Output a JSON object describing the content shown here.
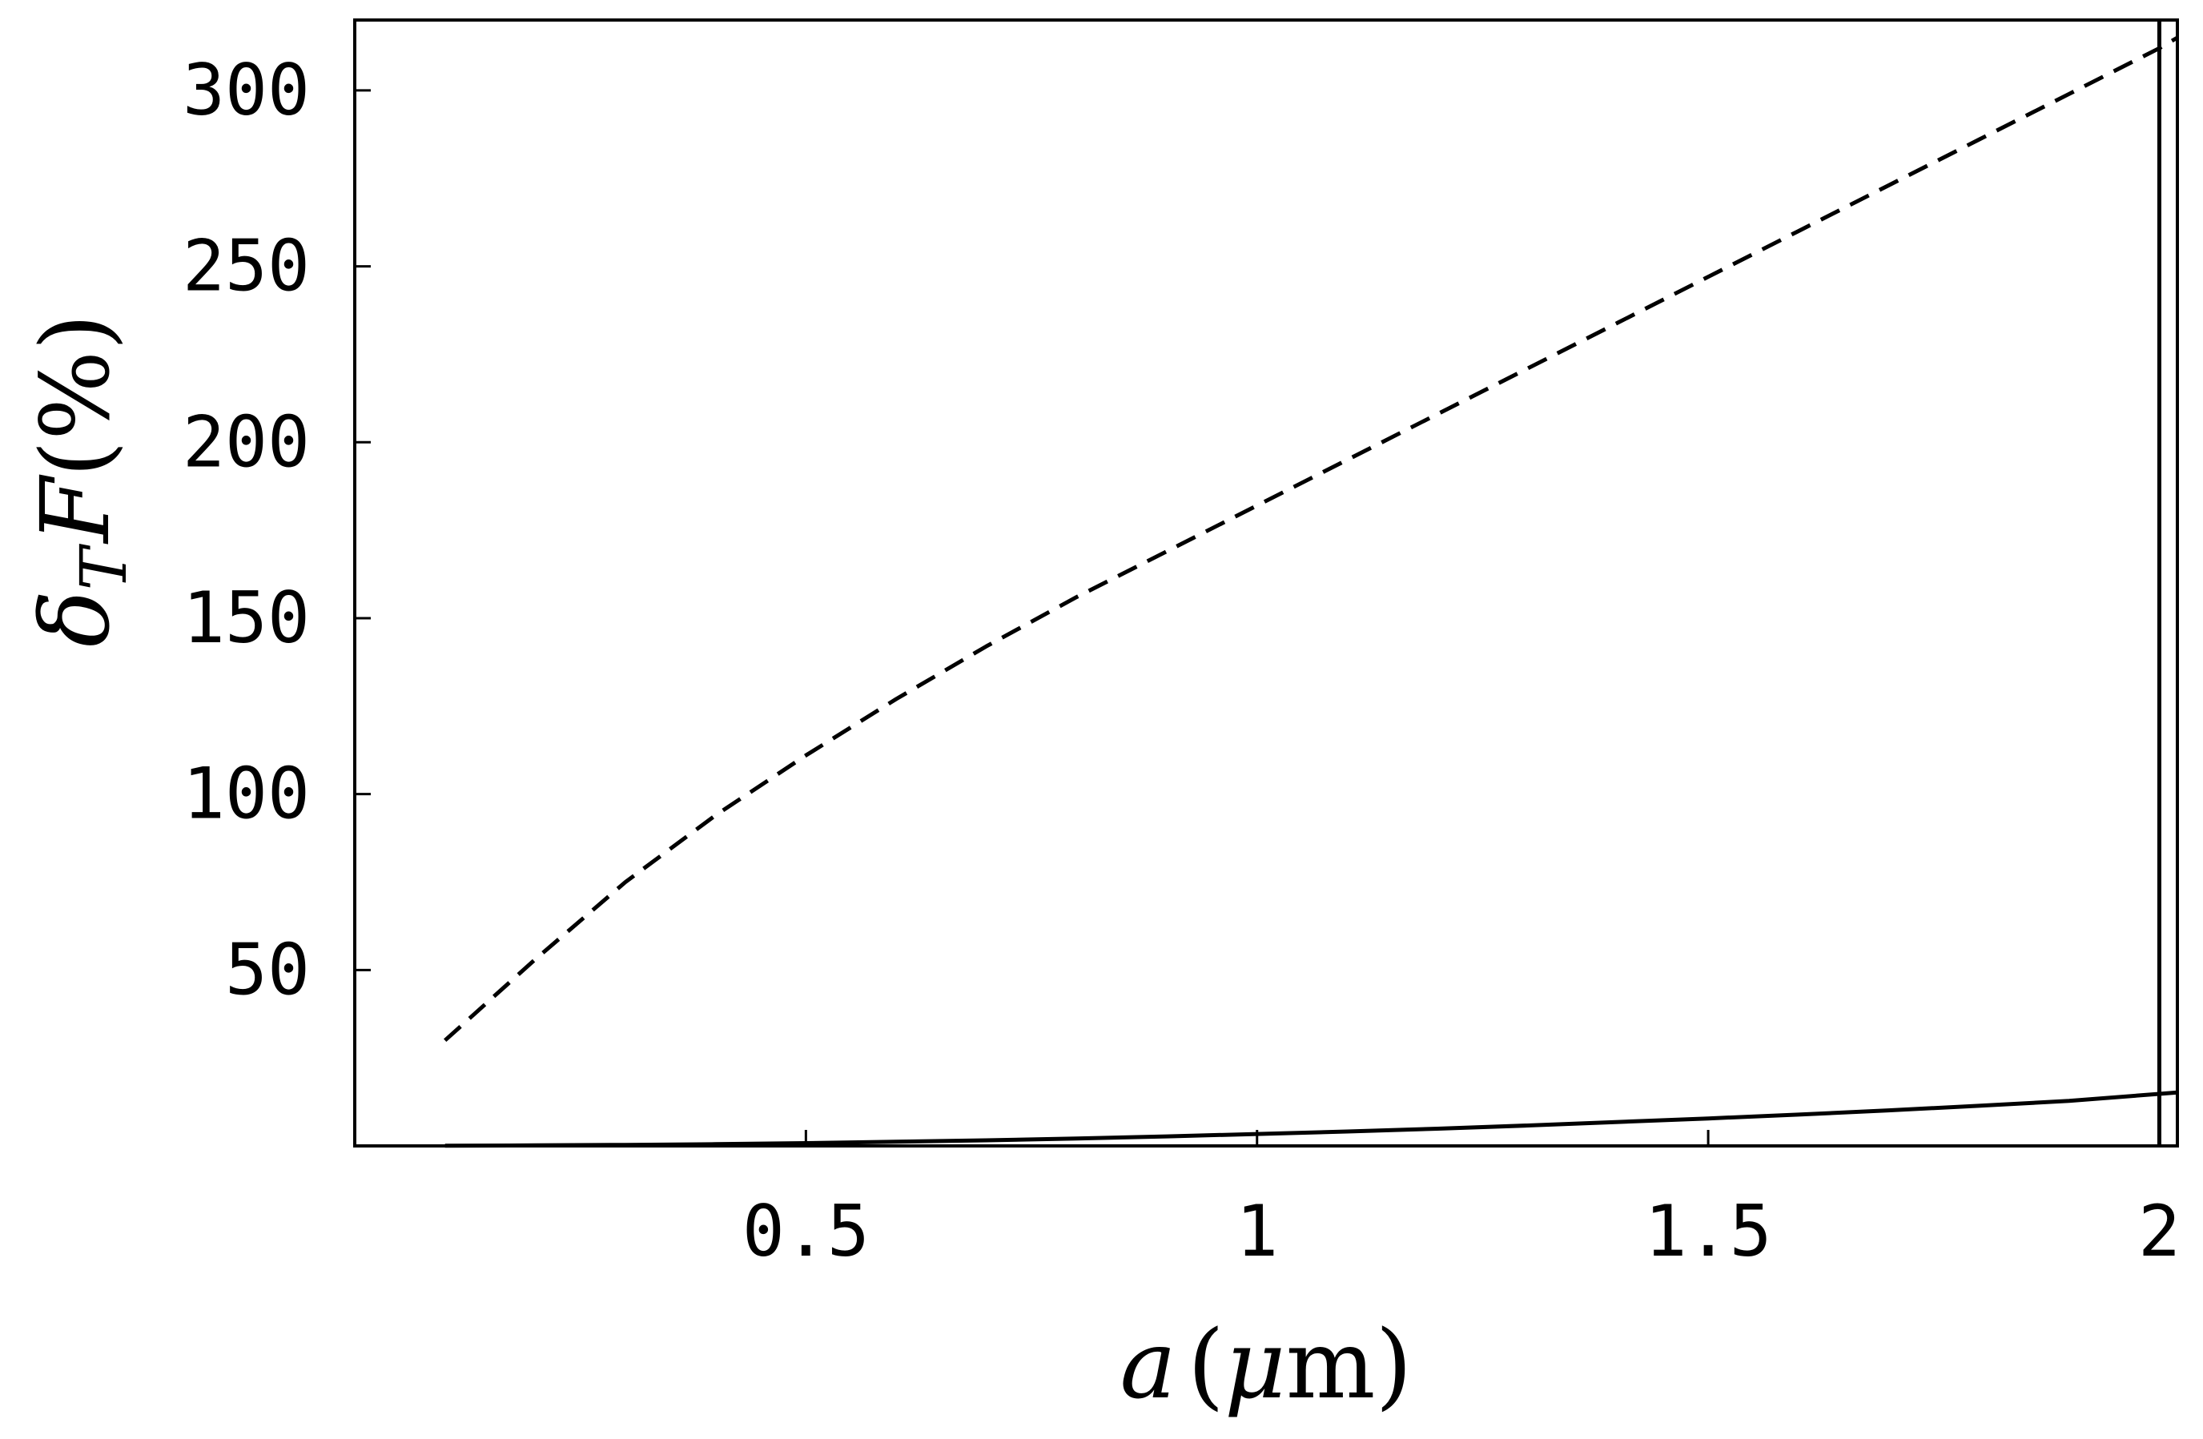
{
  "chart_data": {
    "type": "line",
    "xlabel": {
      "var": "a",
      "open": "(",
      "unit_greek": "μ",
      "unit_rest": "m",
      "close": ")"
    },
    "ylabel": {
      "var": "δ",
      "sub": "T",
      "func": "F",
      "unit": "(%)"
    },
    "xlim": [
      0,
      2.02
    ],
    "ylim": [
      0,
      320
    ],
    "x_ticks": [
      {
        "value": 0.5,
        "label": "0.5"
      },
      {
        "value": 1,
        "label": "1"
      },
      {
        "value": 1.5,
        "label": "1.5"
      },
      {
        "value": 2,
        "label": "2"
      }
    ],
    "y_ticks": [
      {
        "value": 50,
        "label": "50"
      },
      {
        "value": 100,
        "label": "100"
      },
      {
        "value": 150,
        "label": "150"
      },
      {
        "value": 200,
        "label": "200"
      },
      {
        "value": 250,
        "label": "250"
      },
      {
        "value": 300,
        "label": "300"
      }
    ],
    "vertical_line_x": 2,
    "grid": false,
    "legend": "none",
    "series": [
      {
        "style": "dashed",
        "color": "#000000",
        "x": [
          0.1,
          0.2,
          0.3,
          0.4,
          0.5,
          0.6,
          0.7,
          0.8,
          0.9,
          1.0,
          1.1,
          1.2,
          1.3,
          1.4,
          1.5,
          1.6,
          1.7,
          1.8,
          1.9,
          2.0,
          2.02
        ],
        "y": [
          30,
          53,
          75,
          94,
          111,
          127,
          142,
          156,
          169,
          182,
          195,
          208,
          221,
          234,
          247,
          260,
          273,
          286,
          299,
          312,
          315
        ]
      },
      {
        "style": "solid",
        "color": "#000000",
        "x": [
          0.1,
          0.2,
          0.3,
          0.4,
          0.5,
          0.6,
          0.7,
          0.8,
          0.9,
          1.0,
          1.1,
          1.2,
          1.3,
          1.4,
          1.5,
          1.6,
          1.7,
          1.8,
          1.9,
          2.0,
          2.02
        ],
        "y": [
          0.05,
          0.15,
          0.3,
          0.5,
          0.8,
          1.2,
          1.6,
          2.1,
          2.7,
          3.4,
          4.1,
          4.9,
          5.8,
          6.8,
          7.8,
          8.9,
          10.1,
          11.4,
          12.8,
          14.8,
          15.2
        ]
      }
    ]
  }
}
